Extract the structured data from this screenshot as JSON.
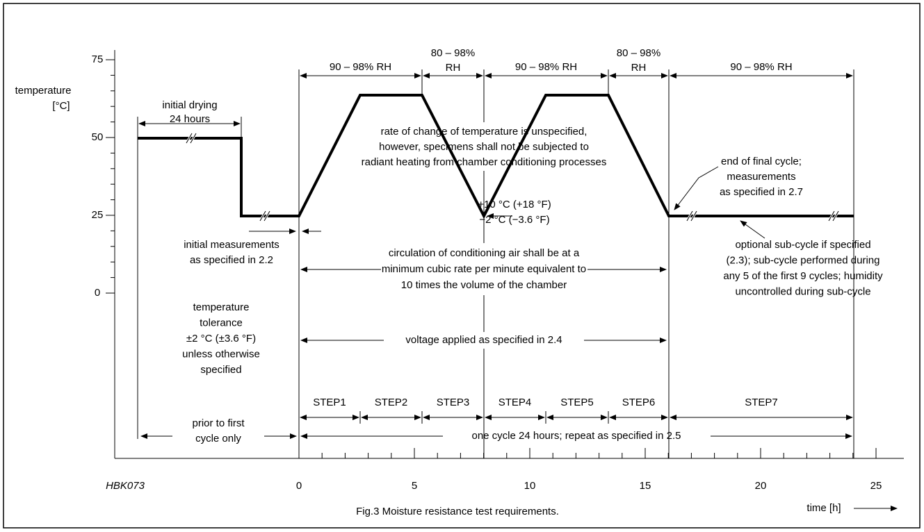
{
  "figure": {
    "code": "HBK073",
    "caption": "Fig.3  Moisture resistance test requirements.",
    "y_axis": {
      "label": [
        "temperature",
        "[°C]"
      ],
      "ticks": [
        "75",
        "50",
        "25",
        "0"
      ]
    },
    "x_axis": {
      "label": "time [h]",
      "ticks": [
        "0",
        "5",
        "10",
        "15",
        "20",
        "25"
      ]
    },
    "humidity": [
      [
        "90 – 98% RH"
      ],
      [
        "80 – 98%",
        "RH"
      ],
      [
        "90 – 98% RH"
      ],
      [
        "80 – 98%",
        "RH"
      ],
      [
        "90 – 98% RH"
      ]
    ],
    "initial_drying": [
      "initial drying",
      "24 hours"
    ],
    "rate_note": [
      "rate of change of temperature is unspecified,",
      "however, specimens shall not be subjected to",
      "radiant heating from chamber conditioning processes"
    ],
    "tolerance_low": [
      "+10 °C (+18 °F)",
      "−2 °C (−3.6 °F)"
    ],
    "initial_measurements": [
      "initial measurements",
      "as specified in 2.2"
    ],
    "circulation": [
      "circulation of conditioning air shall be at a",
      "minimum cubic rate per minute equivalent to",
      "10 times the volume of the chamber"
    ],
    "end_of_cycle": [
      "end of final cycle;",
      "measurements",
      "as specified in 2.7"
    ],
    "sub_cycle": [
      "optional sub-cycle if specified",
      "(2.3); sub-cycle performed during",
      "any 5 of the first 9 cycles; humidity",
      "uncontrolled during sub-cycle"
    ],
    "temperature_tolerance": [
      "temperature",
      "tolerance",
      "±2 °C (±3.6 °F)",
      "unless otherwise",
      "specified"
    ],
    "voltage": "voltage applied as specified in 2.4",
    "steps": [
      "STEP1",
      "STEP2",
      "STEP3",
      "STEP4",
      "STEP5",
      "STEP6",
      "STEP7"
    ],
    "prior": [
      "prior to first",
      "cycle only"
    ],
    "one_cycle": "one cycle 24 hours; repeat as specified in 2.5"
  }
}
